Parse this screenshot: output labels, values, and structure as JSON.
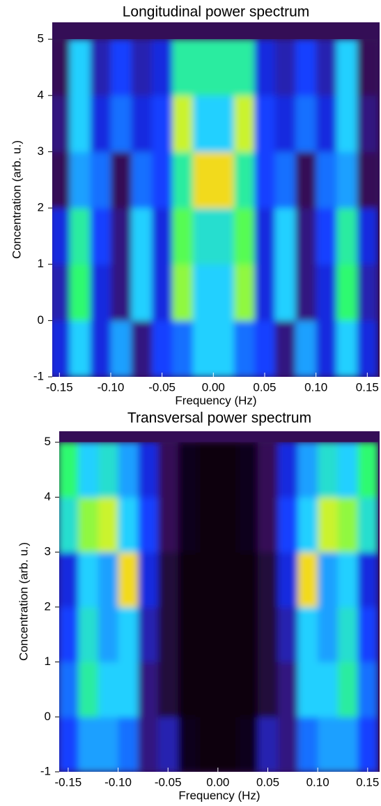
{
  "chart_data": [
    {
      "type": "heatmap",
      "title": "Longitudinal power spectrum",
      "xlabel": "Frequency (Hz)",
      "ylabel": "Concentration (arb. u.)",
      "xlim": [
        -0.157,
        0.162
      ],
      "ylim": [
        -1,
        5.3
      ],
      "xticks": [
        -0.15,
        {
          "value": -0.1,
          "label": "-0.10"
        },
        -0.05,
        {
          "value": 0,
          "label": "0.00"
        },
        0.05,
        {
          "value": 0.1,
          "label": "0.10"
        },
        0.15
      ],
      "yticks": [
        -1,
        0,
        1,
        2,
        3,
        4,
        5
      ],
      "colormap": [
        "#000000",
        "#3a1060",
        "#1030ff",
        "#20d0ff",
        "#30ff60",
        "#f0f020",
        "#ff1010"
      ],
      "x": [
        -0.15,
        -0.13,
        -0.11,
        -0.09,
        -0.07,
        -0.05,
        -0.03,
        -0.01,
        0.01,
        0.03,
        0.05,
        0.07,
        0.09,
        0.11,
        0.13,
        0.15
      ],
      "y": [
        -0.5,
        0.5,
        1.5,
        2.5,
        3.5,
        4.5
      ],
      "z": [
        [
          0.3,
          0.5,
          0.3,
          0.45,
          0.2,
          0.35,
          0.4,
          0.5,
          0.5,
          0.4,
          0.35,
          0.2,
          0.45,
          0.3,
          0.5,
          0.3
        ],
        [
          0.25,
          0.65,
          0.3,
          0.2,
          0.5,
          0.3,
          0.75,
          0.5,
          0.5,
          0.75,
          0.3,
          0.5,
          0.2,
          0.3,
          0.65,
          0.25
        ],
        [
          0.3,
          0.6,
          0.35,
          0.2,
          0.5,
          0.3,
          0.7,
          0.55,
          0.55,
          0.7,
          0.3,
          0.5,
          0.2,
          0.35,
          0.6,
          0.3
        ],
        [
          0.15,
          0.45,
          0.4,
          0.15,
          0.4,
          0.35,
          0.6,
          0.85,
          0.85,
          0.6,
          0.35,
          0.4,
          0.15,
          0.4,
          0.45,
          0.15
        ],
        [
          0.2,
          0.5,
          0.3,
          0.4,
          0.3,
          0.35,
          0.8,
          0.5,
          0.5,
          0.8,
          0.35,
          0.3,
          0.4,
          0.3,
          0.5,
          0.2
        ],
        [
          0.15,
          0.5,
          0.25,
          0.35,
          0.25,
          0.3,
          0.6,
          0.6,
          0.6,
          0.6,
          0.3,
          0.25,
          0.35,
          0.25,
          0.5,
          0.15
        ]
      ]
    },
    {
      "type": "heatmap",
      "title": "Transversal power spectrum",
      "xlabel": "Frequency (Hz)",
      "ylabel": "Concentration (arb. u.)",
      "xlim": [
        -0.159,
        0.162
      ],
      "ylim": [
        -1,
        5.2
      ],
      "xticks": [
        -0.15,
        {
          "value": -0.1,
          "label": "-0.10"
        },
        -0.05,
        {
          "value": 0,
          "label": "0.00"
        },
        0.05,
        {
          "value": 0.1,
          "label": "0.10"
        },
        0.15
      ],
      "yticks": [
        -1,
        0,
        1,
        2,
        3,
        4,
        5
      ],
      "colormap": [
        "#000000",
        "#3a1060",
        "#1030ff",
        "#20d0ff",
        "#30ff60",
        "#f0f020",
        "#ff1010"
      ],
      "x": [
        -0.15,
        -0.13,
        -0.11,
        -0.09,
        -0.07,
        -0.05,
        -0.03,
        -0.01,
        0.01,
        0.03,
        0.05,
        0.07,
        0.09,
        0.11,
        0.13,
        0.15
      ],
      "y": [
        -0.5,
        0.5,
        1.5,
        2.5,
        3.5,
        4.5
      ],
      "z": [
        [
          0.35,
          0.45,
          0.45,
          0.4,
          0.2,
          0.25,
          0.05,
          0.02,
          0.02,
          0.05,
          0.25,
          0.2,
          0.4,
          0.45,
          0.45,
          0.35
        ],
        [
          0.4,
          0.6,
          0.5,
          0.5,
          0.2,
          0.1,
          0.03,
          0.02,
          0.02,
          0.03,
          0.1,
          0.2,
          0.5,
          0.5,
          0.6,
          0.4
        ],
        [
          0.35,
          0.55,
          0.45,
          0.5,
          0.25,
          0.1,
          0.03,
          0.02,
          0.02,
          0.03,
          0.1,
          0.25,
          0.5,
          0.45,
          0.55,
          0.35
        ],
        [
          0.3,
          0.5,
          0.45,
          0.85,
          0.3,
          0.1,
          0.03,
          0.02,
          0.02,
          0.03,
          0.1,
          0.3,
          0.85,
          0.45,
          0.5,
          0.3
        ],
        [
          0.55,
          0.75,
          0.8,
          0.5,
          0.35,
          0.15,
          0.05,
          0.02,
          0.02,
          0.05,
          0.15,
          0.35,
          0.5,
          0.8,
          0.75,
          0.55
        ],
        [
          0.65,
          0.5,
          0.55,
          0.45,
          0.3,
          0.15,
          0.05,
          0.02,
          0.02,
          0.05,
          0.15,
          0.3,
          0.45,
          0.55,
          0.5,
          0.65
        ]
      ]
    }
  ]
}
